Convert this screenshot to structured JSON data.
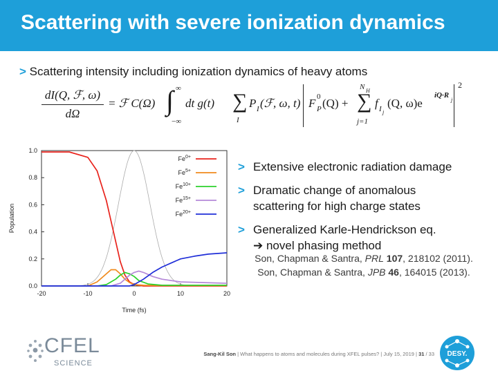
{
  "slide": {
    "title": "Scattering with severe ionization dynamics",
    "main_bullet": "Scattering intensity including ionization dynamics of heavy atoms"
  },
  "equation": {
    "numerator": "dI(Q, ℱ, ω)",
    "denominator": "dΩ",
    "rhs1": "= ℱ C(Ω)",
    "integral_upper": "∞",
    "integral_lower": "−∞",
    "integrand": "dt g(t)",
    "sum1_symbol": "∑",
    "sum1_index": "I",
    "term1": "P",
    "term1_sub": "I",
    "term1_args": "(ℱ, ω, t)",
    "term2": "F",
    "term2_sup": "0",
    "term2_sub": "P",
    "term2_args": "(Q) +",
    "sum2_symbol": "∑",
    "sum2_upper": "N",
    "sum2_upper_sub": "H",
    "sum2_lower": "j=1",
    "term3": "f",
    "term3_sub": "I",
    "term3_subsub": "j",
    "term3_args": "(Q, ω)e",
    "term3_exp": "iQ·R",
    "term3_exp_sub": "j",
    "power": "2"
  },
  "right_bullets": [
    {
      "text": "Extensive electronic radiation damage"
    },
    {
      "line1": "Dramatic change of anomalous",
      "line2": "scattering for high charge states"
    },
    {
      "line1": "Generalized Karle-Hendrickson eq.",
      "line2": "➔ novel phasing method"
    }
  ],
  "references": {
    "ref1_authors": "Son, Chapman & Santra, ",
    "ref1_journal": "PRL",
    "ref1_volume": " 107",
    "ref1_rest": ", 218102 (2011).",
    "ref2_authors": "Son, Chapman & Santra, ",
    "ref2_journal": "JPB",
    "ref2_volume": " 46",
    "ref2_rest": ", 164015 (2013)."
  },
  "footer": {
    "author": "Sang-Kil Son",
    "talk": "  |  What happens to atoms and molecules during XFEL pulses?  |  July 15, 2019  |  ",
    "page": "31",
    "total": " / 33"
  },
  "logos": {
    "cfel": "CFEL",
    "cfel_sub": "SCIENCE",
    "desy": "DESY."
  },
  "chart_data": {
    "type": "line",
    "xlabel": "Time (fs)",
    "ylabel": "Population",
    "xlim": [
      -20,
      20
    ],
    "ylim": [
      0,
      1.0
    ],
    "xticks": [
      "-20",
      "-10",
      "0",
      "10",
      "20"
    ],
    "yticks": [
      "0.0",
      "0.2",
      "0.4",
      "0.6",
      "0.8",
      "1.0"
    ],
    "legend_position": "top-right",
    "series": [
      {
        "name": "Fe",
        "sup": "0+",
        "color": "#e8221b",
        "x": [
          -20,
          -14,
          -10,
          -8,
          -6,
          -5,
          -4,
          -3,
          -2,
          -1,
          0,
          2,
          20
        ],
        "y": [
          0.99,
          0.99,
          0.95,
          0.85,
          0.63,
          0.48,
          0.33,
          0.18,
          0.08,
          0.03,
          0.01,
          0.0,
          0.0
        ]
      },
      {
        "name": "Fe",
        "sup": "5+",
        "color": "#f08a1c",
        "x": [
          -20,
          -10,
          -8,
          -6,
          -5,
          -4,
          -3,
          -2,
          -1,
          0,
          2,
          5,
          20
        ],
        "y": [
          0.0,
          0.0,
          0.03,
          0.09,
          0.12,
          0.12,
          0.09,
          0.05,
          0.025,
          0.01,
          0.005,
          0.003,
          0.003
        ]
      },
      {
        "name": "Fe",
        "sup": "10+",
        "color": "#2bd12b",
        "x": [
          -20,
          -8,
          -6,
          -4,
          -3,
          -2,
          -1,
          0,
          1,
          3,
          6,
          20
        ],
        "y": [
          0.0,
          0.0,
          0.01,
          0.05,
          0.08,
          0.1,
          0.09,
          0.07,
          0.04,
          0.015,
          0.005,
          0.005
        ]
      },
      {
        "name": "Fe",
        "sup": "15+",
        "color": "#b488d8",
        "x": [
          -20,
          -5,
          -3,
          -1,
          0,
          1,
          2,
          4,
          6,
          10,
          20
        ],
        "y": [
          0.0,
          0.0,
          0.02,
          0.08,
          0.1,
          0.11,
          0.1,
          0.07,
          0.05,
          0.03,
          0.02
        ]
      },
      {
        "name": "Fe",
        "sup": "20+",
        "color": "#1f2ed8",
        "x": [
          -20,
          -1,
          0,
          2,
          4,
          6,
          8,
          10,
          13,
          16,
          20
        ],
        "y": [
          0.0,
          0.0,
          0.01,
          0.05,
          0.1,
          0.14,
          0.17,
          0.2,
          0.22,
          0.235,
          0.245
        ]
      }
    ],
    "pulse_envelope": {
      "color": "#aaaaaa",
      "center": 0,
      "peak": 1.0,
      "sigma": 3.4
    }
  }
}
